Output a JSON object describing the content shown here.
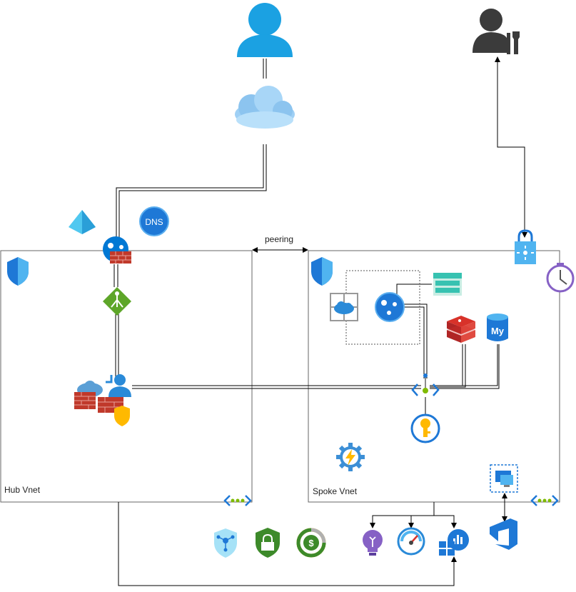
{
  "labels": {
    "hub_vnet": "Hub Vnet",
    "spoke_vnet": "Spoke Vnet",
    "peering": "peering",
    "dns_badge": "DNS",
    "mysql_badge": "My"
  },
  "colors": {
    "azure_blue": "#0078d4",
    "light_blue": "#50e6ff",
    "user_blue": "#1ba1e2",
    "firewall_red": "#c0392b",
    "green": "#7fba00",
    "gold": "#ffb900",
    "purple": "#8661c5",
    "dark_gray": "#3b3b3b",
    "line": "#000000"
  },
  "icons": [
    "user-icon",
    "admin-user-icon",
    "internet-cloud-icon",
    "entra-id-icon",
    "dns-zone-icon",
    "app-gateway-waf-icon",
    "load-balancer-icon",
    "firewall-bastion-icon",
    "shield-icon",
    "nsg-icon",
    "app-service-plan-icon",
    "web-app-icon",
    "storage-icon",
    "redis-cache-icon",
    "mysql-icon",
    "private-endpoint-icon",
    "key-vault-icon",
    "function-app-icon",
    "vnet-icon",
    "vpn-lock-icon",
    "automation-clock-icon",
    "devops-icon",
    "vm-icon",
    "security-center-icon",
    "defender-lock-icon",
    "cost-management-icon",
    "app-insights-icon",
    "monitor-gauge-icon",
    "log-analytics-icon"
  ]
}
